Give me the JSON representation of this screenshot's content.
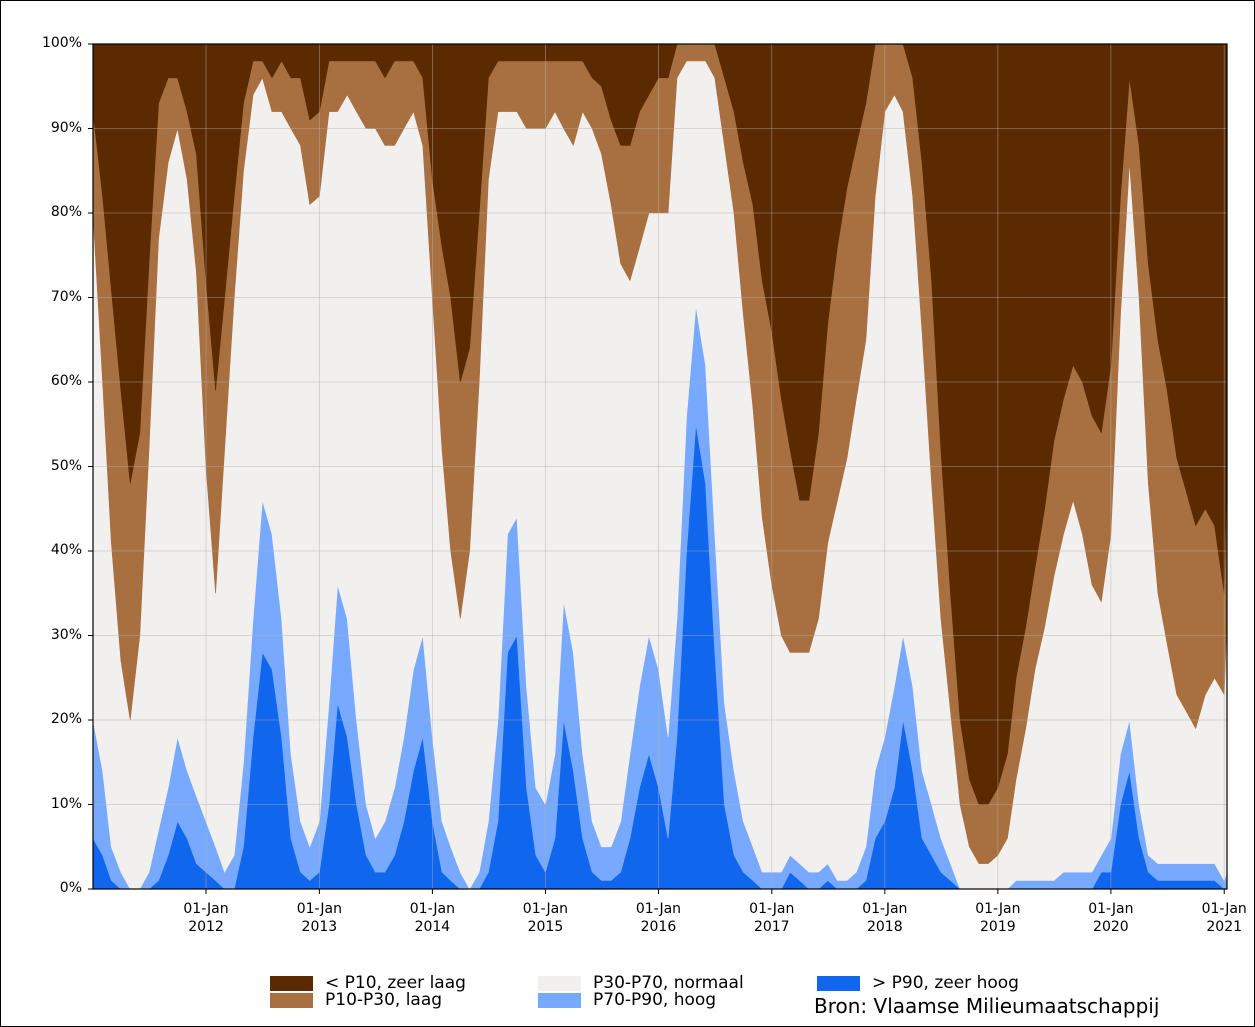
{
  "chart_data": {
    "type": "area",
    "stacked": true,
    "normalized": true,
    "title": "",
    "xlabel": "",
    "ylabel": "",
    "ylim": [
      0,
      100
    ],
    "x_range": [
      "2011-01-01",
      "2021-01-10"
    ],
    "y_ticks": [
      "0%",
      "10%",
      "20%",
      "30%",
      "40%",
      "50%",
      "60%",
      "70%",
      "80%",
      "90%",
      "100%"
    ],
    "x_ticks": [
      {
        "date": "2012-01-01",
        "line1": "01-Jan",
        "line2": "2012"
      },
      {
        "date": "2013-01-01",
        "line1": "01-Jan",
        "line2": "2013"
      },
      {
        "date": "2014-01-01",
        "line1": "01-Jan",
        "line2": "2014"
      },
      {
        "date": "2015-01-01",
        "line1": "01-Jan",
        "line2": "2015"
      },
      {
        "date": "2016-01-01",
        "line1": "01-Jan",
        "line2": "2016"
      },
      {
        "date": "2017-01-01",
        "line1": "01-Jan",
        "line2": "2017"
      },
      {
        "date": "2018-01-01",
        "line1": "01-Jan",
        "line2": "2018"
      },
      {
        "date": "2019-01-01",
        "line1": "01-Jan",
        "line2": "2019"
      },
      {
        "date": "2020-01-01",
        "line1": "01-Jan",
        "line2": "2020"
      },
      {
        "date": "2021-01-01",
        "line1": "01-Jan",
        "line2": "2021"
      }
    ],
    "grid": true,
    "legend_placement": "bottom",
    "dates": [
      "2011-01-01",
      "2011-02-01",
      "2011-03-01",
      "2011-04-01",
      "2011-05-01",
      "2011-06-01",
      "2011-07-01",
      "2011-08-01",
      "2011-09-01",
      "2011-10-01",
      "2011-11-01",
      "2011-12-01",
      "2012-01-01",
      "2012-02-01",
      "2012-03-01",
      "2012-04-01",
      "2012-05-01",
      "2012-06-01",
      "2012-07-01",
      "2012-08-01",
      "2012-09-01",
      "2012-10-01",
      "2012-11-01",
      "2012-12-01",
      "2013-01-01",
      "2013-02-01",
      "2013-03-01",
      "2013-04-01",
      "2013-05-01",
      "2013-06-01",
      "2013-07-01",
      "2013-08-01",
      "2013-09-01",
      "2013-10-01",
      "2013-11-01",
      "2013-12-01",
      "2014-01-01",
      "2014-02-01",
      "2014-03-01",
      "2014-04-01",
      "2014-05-01",
      "2014-06-01",
      "2014-07-01",
      "2014-08-01",
      "2014-09-01",
      "2014-10-01",
      "2014-11-01",
      "2014-12-01",
      "2015-01-01",
      "2015-02-01",
      "2015-03-01",
      "2015-04-01",
      "2015-05-01",
      "2015-06-01",
      "2015-07-01",
      "2015-08-01",
      "2015-09-01",
      "2015-10-01",
      "2015-11-01",
      "2015-12-01",
      "2016-01-01",
      "2016-02-01",
      "2016-03-01",
      "2016-04-01",
      "2016-05-01",
      "2016-06-01",
      "2016-07-01",
      "2016-08-01",
      "2016-09-01",
      "2016-10-01",
      "2016-11-01",
      "2016-12-01",
      "2017-01-01",
      "2017-02-01",
      "2017-03-01",
      "2017-04-01",
      "2017-05-01",
      "2017-06-01",
      "2017-07-01",
      "2017-08-01",
      "2017-09-01",
      "2017-10-01",
      "2017-11-01",
      "2017-12-01",
      "2018-01-01",
      "2018-02-01",
      "2018-03-01",
      "2018-04-01",
      "2018-05-01",
      "2018-06-01",
      "2018-07-01",
      "2018-08-01",
      "2018-09-01",
      "2018-10-01",
      "2018-11-01",
      "2018-12-01",
      "2019-01-01",
      "2019-02-01",
      "2019-03-01",
      "2019-04-01",
      "2019-05-01",
      "2019-06-01",
      "2019-07-01",
      "2019-08-01",
      "2019-09-01",
      "2019-10-01",
      "2019-11-01",
      "2019-12-01",
      "2020-01-01",
      "2020-02-01",
      "2020-03-01",
      "2020-04-01",
      "2020-05-01",
      "2020-06-01",
      "2020-07-01",
      "2020-08-01",
      "2020-09-01",
      "2020-10-01",
      "2020-11-01",
      "2020-12-01",
      "2021-01-01",
      "2021-01-10"
    ],
    "series": [
      {
        "name": "> P90, zeer hoog",
        "color": "#1166ee",
        "values": [
          6,
          4,
          1,
          0,
          0,
          0,
          0,
          1,
          4,
          8,
          6,
          3,
          2,
          1,
          0,
          0,
          5,
          18,
          28,
          26,
          18,
          6,
          2,
          1,
          2,
          10,
          22,
          18,
          10,
          4,
          2,
          2,
          4,
          8,
          14,
          18,
          8,
          2,
          1,
          0,
          0,
          0,
          2,
          8,
          28,
          30,
          12,
          4,
          2,
          6,
          20,
          14,
          6,
          2,
          1,
          1,
          2,
          6,
          12,
          16,
          12,
          6,
          18,
          40,
          55,
          48,
          28,
          10,
          4,
          2,
          1,
          0,
          0,
          0,
          2,
          1,
          0,
          0,
          1,
          0,
          0,
          0,
          1,
          6,
          8,
          12,
          20,
          14,
          6,
          4,
          2,
          1,
          0,
          0,
          0,
          0,
          0,
          0,
          0,
          0,
          0,
          0,
          0,
          0,
          0,
          0,
          0,
          2,
          2,
          10,
          14,
          6,
          2,
          1,
          1,
          1,
          1,
          1,
          1,
          1,
          0,
          0
        ]
      },
      {
        "name": "P70-P90, hoog",
        "color": "#77aaff",
        "values": [
          14,
          10,
          4,
          2,
          0,
          0,
          2,
          6,
          8,
          10,
          8,
          8,
          6,
          4,
          2,
          4,
          10,
          14,
          18,
          16,
          14,
          10,
          6,
          4,
          6,
          12,
          14,
          14,
          10,
          6,
          4,
          6,
          8,
          10,
          12,
          12,
          10,
          6,
          4,
          2,
          0,
          2,
          6,
          12,
          14,
          14,
          12,
          8,
          8,
          10,
          14,
          14,
          10,
          6,
          4,
          4,
          6,
          10,
          12,
          14,
          14,
          12,
          14,
          16,
          14,
          14,
          14,
          12,
          10,
          6,
          4,
          2,
          2,
          2,
          2,
          2,
          2,
          2,
          2,
          1,
          1,
          2,
          4,
          8,
          10,
          12,
          10,
          10,
          8,
          6,
          4,
          2,
          0,
          0,
          0,
          0,
          0,
          0,
          1,
          1,
          1,
          1,
          1,
          2,
          2,
          2,
          2,
          2,
          4,
          6,
          6,
          4,
          2,
          2,
          2,
          2,
          2,
          2,
          2,
          2,
          1,
          2
        ]
      },
      {
        "name": "P30-P70, normaal",
        "color": "#f2f0ee",
        "values": [
          60,
          46,
          36,
          25,
          20,
          30,
          50,
          70,
          74,
          72,
          70,
          62,
          42,
          30,
          50,
          66,
          70,
          62,
          50,
          50,
          60,
          74,
          80,
          76,
          74,
          70,
          56,
          62,
          72,
          80,
          84,
          80,
          76,
          72,
          66,
          58,
          52,
          44,
          35,
          30,
          40,
          58,
          76,
          72,
          50,
          48,
          66,
          78,
          80,
          76,
          56,
          60,
          76,
          82,
          82,
          76,
          66,
          56,
          52,
          50,
          54,
          62,
          64,
          42,
          29,
          36,
          54,
          66,
          66,
          60,
          52,
          42,
          34,
          28,
          24,
          25,
          26,
          30,
          38,
          45,
          50,
          56,
          60,
          68,
          74,
          70,
          62,
          58,
          52,
          38,
          26,
          18,
          10,
          5,
          3,
          3,
          4,
          6,
          12,
          18,
          25,
          30,
          36,
          40,
          44,
          40,
          34,
          30,
          36,
          52,
          66,
          60,
          44,
          32,
          26,
          20,
          18,
          16,
          20,
          22,
          22,
          30
        ]
      },
      {
        "name": "P10-P30, laag",
        "color": "#a87040",
        "values": [
          12,
          22,
          30,
          32,
          28,
          24,
          22,
          16,
          10,
          6,
          8,
          14,
          22,
          24,
          18,
          12,
          8,
          4,
          2,
          4,
          6,
          6,
          8,
          10,
          10,
          6,
          6,
          4,
          6,
          8,
          8,
          8,
          10,
          8,
          6,
          8,
          14,
          24,
          30,
          28,
          24,
          20,
          12,
          6,
          6,
          6,
          8,
          8,
          8,
          6,
          8,
          10,
          6,
          6,
          8,
          10,
          14,
          16,
          16,
          14,
          16,
          16,
          4,
          2,
          2,
          2,
          4,
          8,
          12,
          18,
          24,
          28,
          30,
          28,
          24,
          18,
          18,
          22,
          26,
          30,
          32,
          30,
          28,
          18,
          8,
          6,
          8,
          14,
          20,
          24,
          20,
          14,
          10,
          8,
          7,
          7,
          8,
          10,
          12,
          12,
          12,
          14,
          16,
          16,
          16,
          18,
          20,
          20,
          20,
          14,
          10,
          18,
          26,
          30,
          30,
          28,
          26,
          24,
          22,
          18,
          12,
          18
        ]
      },
      {
        "name": "< P10, zeer laag",
        "color": "#5c2a00",
        "values": [
          8,
          18,
          29,
          41,
          52,
          46,
          26,
          7,
          4,
          4,
          8,
          13,
          28,
          41,
          30,
          18,
          7,
          2,
          2,
          4,
          2,
          4,
          4,
          9,
          8,
          2,
          2,
          2,
          2,
          2,
          2,
          4,
          2,
          2,
          2,
          4,
          16,
          24,
          30,
          40,
          36,
          20,
          4,
          2,
          2,
          2,
          2,
          2,
          2,
          2,
          2,
          2,
          2,
          4,
          5,
          9,
          12,
          12,
          8,
          6,
          4,
          4,
          0,
          0,
          0,
          0,
          0,
          4,
          8,
          14,
          19,
          28,
          34,
          42,
          48,
          54,
          54,
          46,
          33,
          24,
          17,
          12,
          7,
          0,
          0,
          0,
          0,
          4,
          14,
          28,
          50,
          65,
          80,
          87,
          90,
          90,
          88,
          84,
          75,
          69,
          62,
          55,
          47,
          42,
          38,
          40,
          44,
          46,
          38,
          18,
          4,
          12,
          26,
          35,
          41,
          49,
          53,
          57,
          55,
          57,
          66,
          50
        ]
      }
    ]
  },
  "legend": [
    {
      "label": "< P10, zeer laag",
      "color": "#5c2a00"
    },
    {
      "label": "P10-P30, laag",
      "color": "#a87040"
    },
    {
      "label": "P30-P70, normaal",
      "color": "#f2f0ee"
    },
    {
      "label": "P70-P90, hoog",
      "color": "#77aaff"
    },
    {
      "label": "> P90, zeer hoog",
      "color": "#1166ee"
    }
  ],
  "source": "Bron: Vlaamse Milieumaatschappij"
}
